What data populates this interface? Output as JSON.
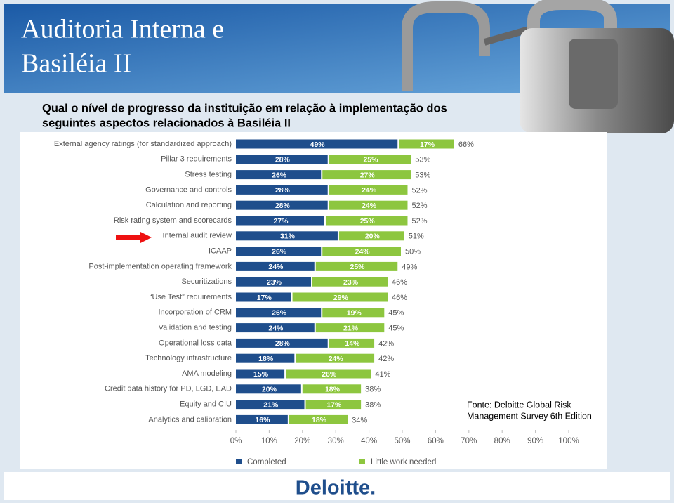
{
  "title": [
    "Auditoria Interna e",
    "Basiléia II"
  ],
  "question": [
    "Qual o nível de progresso da instituição em relação à implementação dos",
    "seguintes aspectos relacionados à Basiléia II"
  ],
  "source": [
    "Fonte: Deloitte Global Risk",
    "Management Survey 6th Edition"
  ],
  "logo": "Deloitte.",
  "chart_data": {
    "type": "stacked-bar-horizontal",
    "categories": [
      "External agency ratings (for standardized approach)",
      "Pillar 3 requirements",
      "Stress testing",
      "Governance and controls",
      "Calculation and reporting",
      "Risk rating system and scorecards",
      "Internal audit review",
      "ICAAP",
      "Post-implementation operating framework",
      "Securitizations",
      "“Use Test” requirements",
      "Incorporation of CRM",
      "Validation and testing",
      "Operational loss data",
      "Technology infrastructure",
      "AMA modeling",
      "Credit data history for PD, LGD, EAD",
      "Equity and CIU",
      "Analytics and calibration"
    ],
    "series": [
      {
        "name": "Completed",
        "color": "#1f4e8c",
        "values": [
          49,
          28,
          26,
          28,
          28,
          27,
          31,
          26,
          24,
          23,
          17,
          26,
          24,
          28,
          18,
          15,
          20,
          21,
          16
        ],
        "value_labels": [
          "49%",
          "28%",
          "26%",
          "28%",
          "28%",
          "27%",
          "31%",
          "26%",
          "24%",
          "23%",
          "17%",
          "26%",
          "24%",
          "28%",
          "18%",
          "15%",
          "20%",
          "21%",
          "16%"
        ]
      },
      {
        "name": "Little work needed",
        "color": "#8dc63f",
        "values": [
          17,
          25,
          27,
          24,
          24,
          25,
          20,
          24,
          25,
          23,
          29,
          19,
          21,
          14,
          24,
          26,
          18,
          17,
          18
        ],
        "value_labels": [
          "17%",
          "25%",
          "27%",
          "24%",
          "24%",
          "25%",
          "20%",
          "24%",
          "25%",
          "23%",
          "29%",
          "19%",
          "21%",
          "14%",
          "24%",
          "26%",
          "18%",
          "17%",
          "18%"
        ]
      }
    ],
    "totals": [
      66,
      53,
      53,
      52,
      52,
      52,
      51,
      50,
      49,
      46,
      46,
      45,
      45,
      42,
      42,
      41,
      38,
      38,
      34
    ],
    "total_labels": [
      "66%",
      "53%",
      "53%",
      "52%",
      "52%",
      "52%",
      "51%",
      "50%",
      "49%",
      "46%",
      "46%",
      "45%",
      "45%",
      "42%",
      "42%",
      "41%",
      "38%",
      "38%",
      "34%"
    ],
    "xlim": [
      0,
      100
    ],
    "xticks": [
      {
        "value": 0,
        "label": "0%"
      },
      {
        "value": 10,
        "label": "10%"
      },
      {
        "value": 20,
        "label": "20%"
      },
      {
        "value": 30,
        "label": "30%"
      },
      {
        "value": 40,
        "label": "40%"
      },
      {
        "value": 50,
        "label": "50%"
      },
      {
        "value": 60,
        "label": "60%"
      },
      {
        "value": 70,
        "label": "70%"
      },
      {
        "value": 80,
        "label": "80%"
      },
      {
        "value": 90,
        "label": "90%"
      },
      {
        "value": 100,
        "label": "100%"
      }
    ]
  }
}
